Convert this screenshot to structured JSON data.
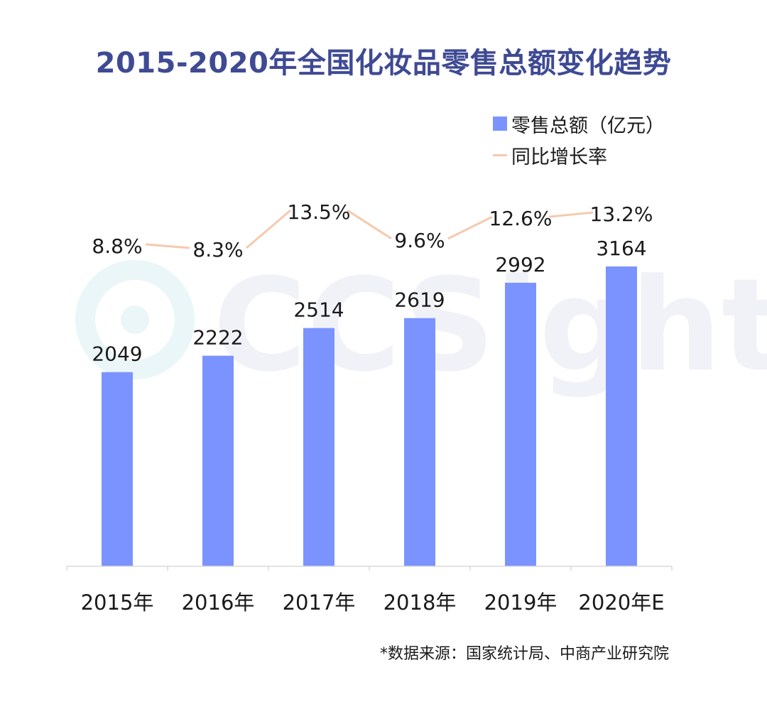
{
  "title": "2015-2020年全国化妆品零售总额变化趋势",
  "legend": {
    "bar_label": "零售总额（亿元）",
    "line_label": "同比增长率"
  },
  "source": "*数据来源：国家统计局、中商产业研究院",
  "watermark": "CCSight",
  "colors": {
    "title": "#3f4a94",
    "bar": "#7b93ff",
    "line": "#f6c9ae",
    "axis": "#d9d9d9",
    "watermark": "#eef0f8"
  },
  "chart_data": {
    "type": "bar",
    "categories": [
      "2015年",
      "2016年",
      "2017年",
      "2018年",
      "2019年",
      "2020年E"
    ],
    "series": [
      {
        "name": "零售总额（亿元）",
        "type": "bar",
        "values": [
          2049,
          2222,
          2514,
          2619,
          2992,
          3164
        ]
      },
      {
        "name": "同比增长率",
        "type": "line",
        "values": [
          8.8,
          8.3,
          13.5,
          9.6,
          12.6,
          13.2
        ],
        "unit": "%"
      }
    ],
    "bar_labels": [
      "2049",
      "2222",
      "2514",
      "2619",
      "2992",
      "3164"
    ],
    "line_labels": [
      "8.8%",
      "8.3%",
      "13.5%",
      "9.6%",
      "12.6%",
      "13.2%"
    ],
    "ylim": [
      0,
      3164
    ],
    "grid": false,
    "legend_position": "top-right"
  }
}
